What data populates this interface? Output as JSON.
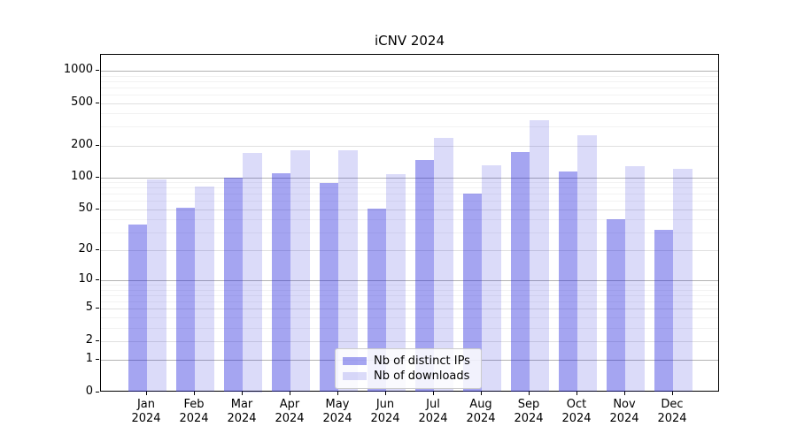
{
  "title": "iCNV 2024",
  "chart_data": {
    "type": "bar",
    "title": "iCNV 2024",
    "x_months": [
      "Jan",
      "Feb",
      "Mar",
      "Apr",
      "May",
      "Jun",
      "Jul",
      "Aug",
      "Sep",
      "Oct",
      "Nov",
      "Dec"
    ],
    "x_year": "2024",
    "series": [
      {
        "name": "Nb of distinct IPs",
        "color": "rgba(30,30,220,0.40)",
        "values": [
          36,
          52,
          100,
          110,
          89,
          51,
          145,
          70,
          173,
          114,
          40,
          32
        ]
      },
      {
        "name": "Nb of downloads",
        "color": "rgba(30,30,220,0.16)",
        "values": [
          95,
          82,
          170,
          179,
          181,
          107,
          235,
          130,
          346,
          250,
          127,
          121
        ]
      }
    ],
    "yscale": "symlog (pixel position proportional to ln(1+value))",
    "yticks": [
      0,
      1,
      2,
      5,
      10,
      20,
      50,
      100,
      200,
      500,
      1000
    ],
    "emphasized_gridlines": [
      1,
      10,
      100,
      1000
    ],
    "minor_gridlines": [
      3,
      4,
      6,
      7,
      8,
      9,
      30,
      40,
      60,
      70,
      80,
      90,
      300,
      400,
      600,
      700,
      800,
      900
    ],
    "ylim": [
      0,
      1400
    ],
    "grid": true,
    "legend_position": "lower center"
  }
}
